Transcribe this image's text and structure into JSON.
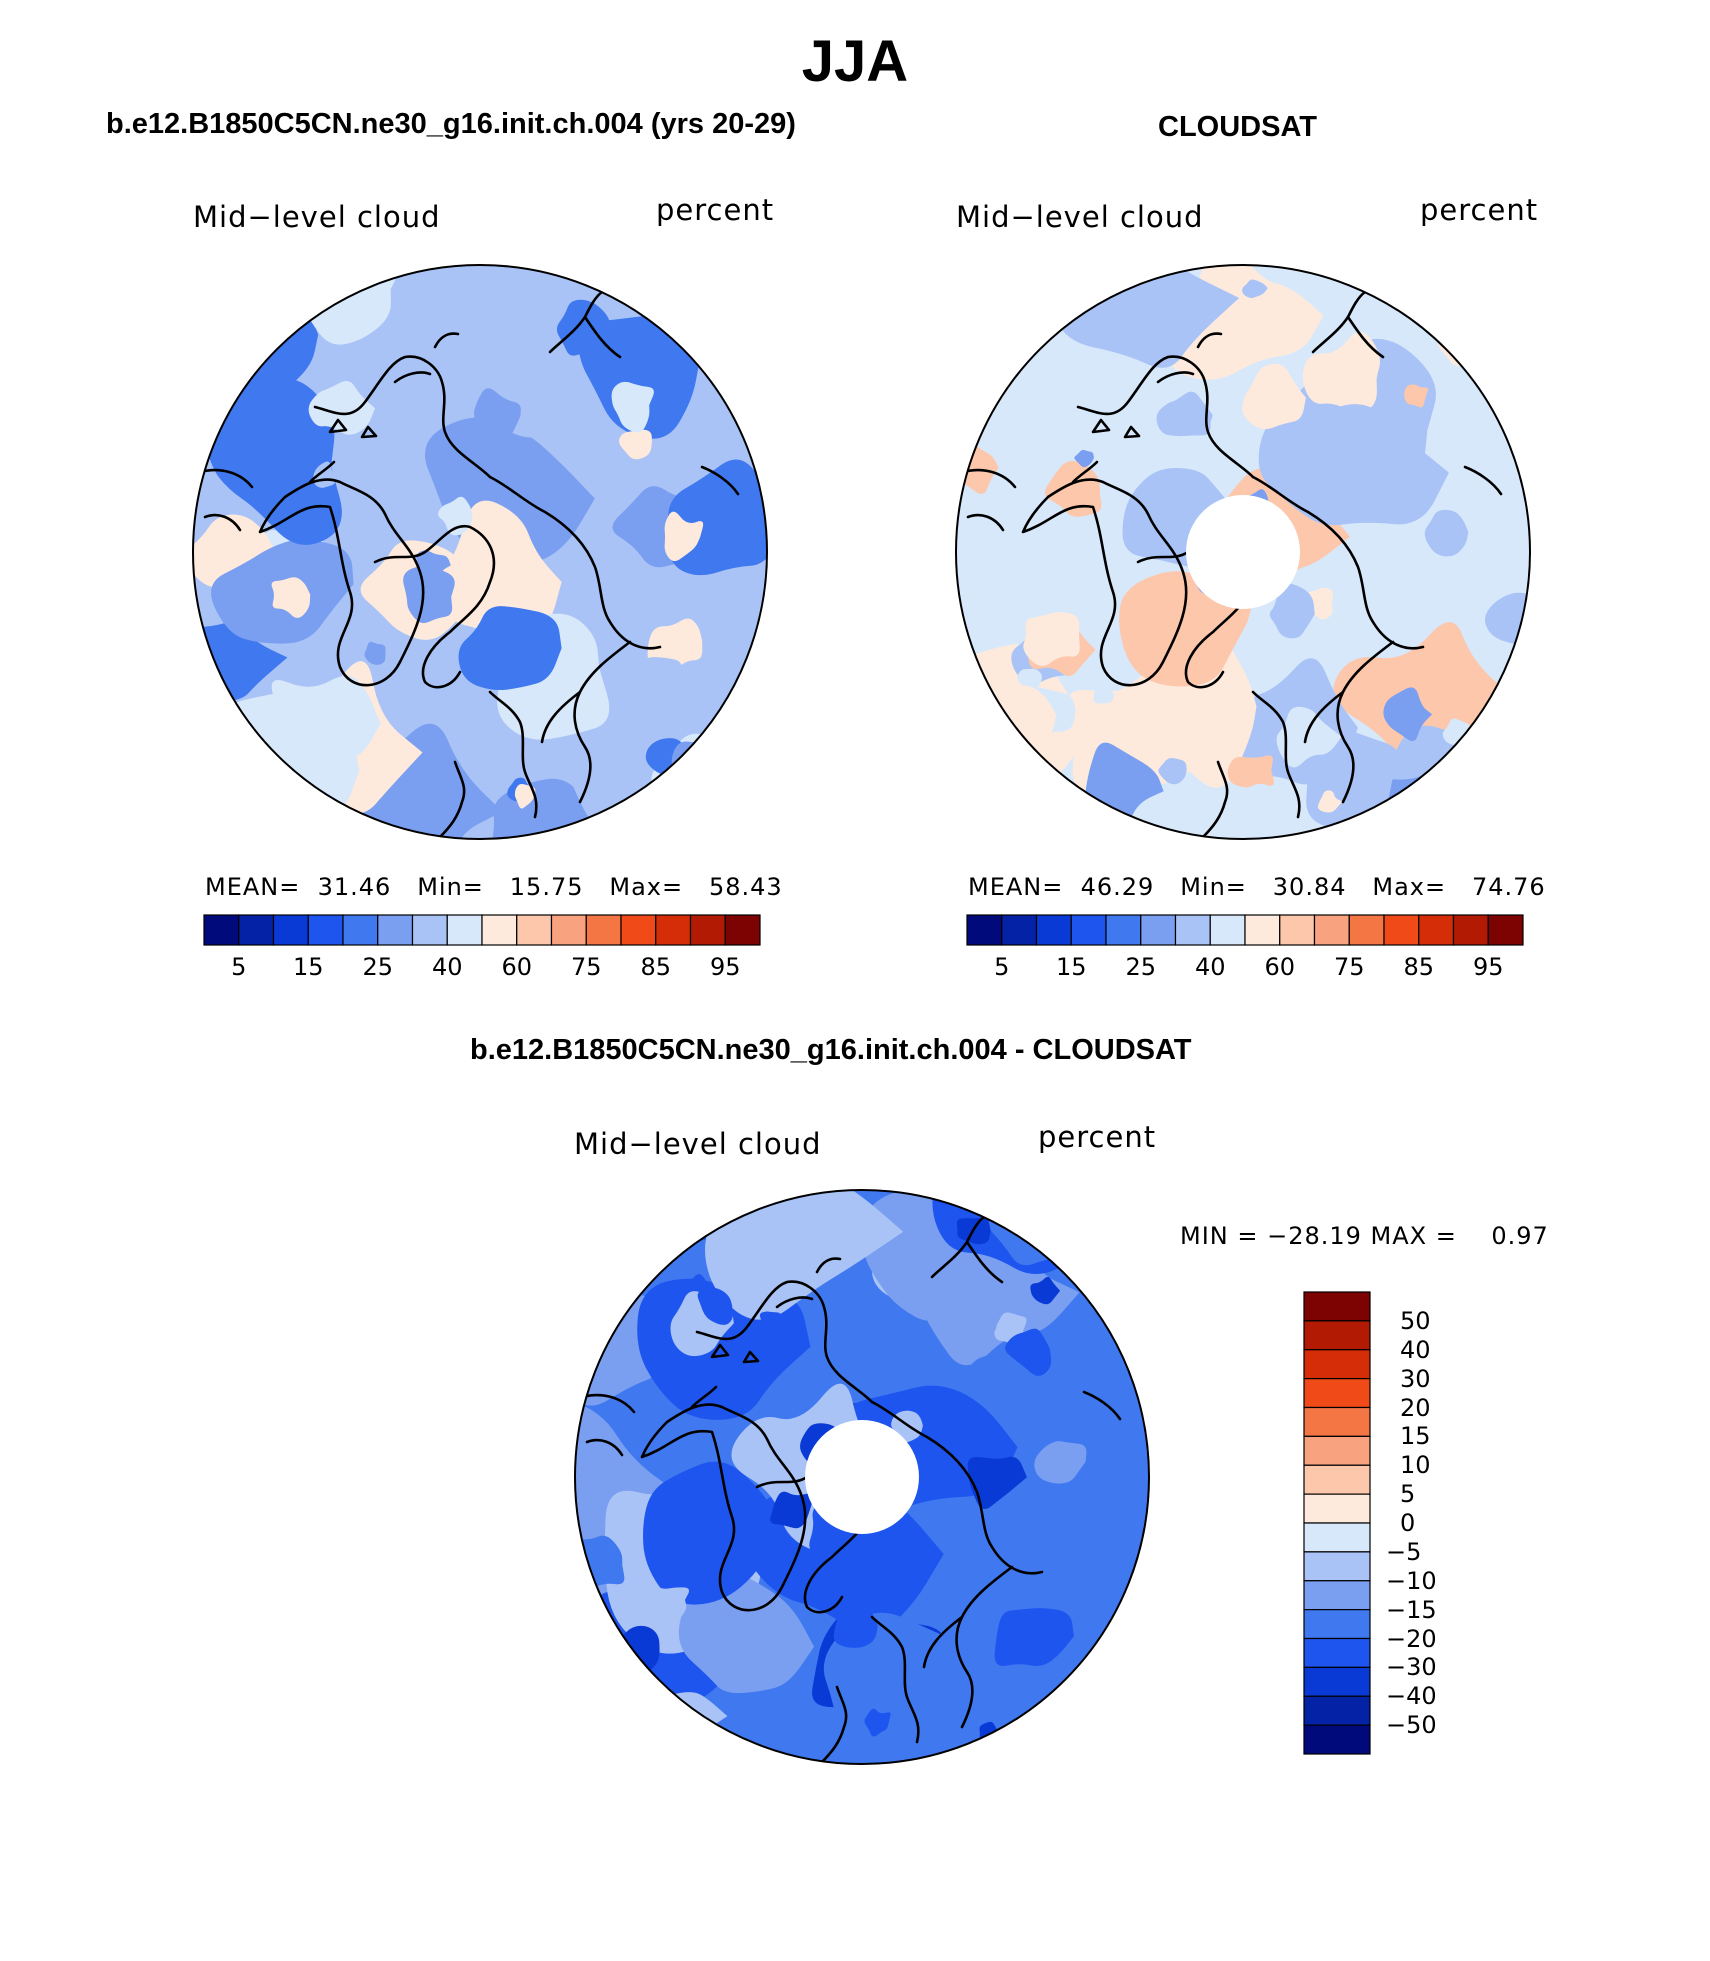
{
  "title": "JJA",
  "panels": [
    {
      "id": "model",
      "header": "b.e12.B1850C5CN.ne30_g16.init.ch.004 (yrs 20-29)",
      "variable": "Mid−level cloud",
      "units": "percent",
      "stats": "MEAN=  31.46   Min=   15.75   Max=   58.43",
      "base_level": 6,
      "polar_hole": false
    },
    {
      "id": "obs",
      "header": "CLOUDSAT",
      "variable": "Mid−level cloud",
      "units": "percent",
      "stats": "MEAN=  46.29   Min=   30.84   Max=   74.76",
      "base_level": 7,
      "polar_hole": true
    },
    {
      "id": "diff",
      "header": "b.e12.B1850C5CN.ne30_g16.init.ch.004 - CLOUDSAT",
      "variable": "Mid−level cloud",
      "units": "percent",
      "stats": "MIN = −28.19 MAX =    0.97",
      "base_level": 4,
      "polar_hole": true
    }
  ],
  "colorbar_abs": {
    "colors": [
      "#000a7a",
      "#0322a6",
      "#0a3ad6",
      "#1e55ef",
      "#3f78ef",
      "#7a9ff0",
      "#a9c3f6",
      "#d7e8fb",
      "#feeadd",
      "#fcc7ab",
      "#f9a27f",
      "#f57645",
      "#ef4a18",
      "#d52d07",
      "#b21a04",
      "#7d0303"
    ],
    "tick_labels": [
      "5",
      "15",
      "25",
      "40",
      "60",
      "75",
      "85",
      "95"
    ]
  },
  "colorbar_diff": {
    "colors": [
      "#7d0303",
      "#b21a04",
      "#d52d07",
      "#ef4a18",
      "#f57645",
      "#f9a27f",
      "#fcc7ab",
      "#feeadd",
      "#d7e8fb",
      "#a9c3f6",
      "#7a9ff0",
      "#3f78ef",
      "#1e55ef",
      "#0a3ad6",
      "#0322a6",
      "#000a7a"
    ],
    "tick_labels": [
      "50",
      "40",
      "30",
      "20",
      "15",
      "10",
      "5",
      "0",
      "−5",
      "−10",
      "−15",
      "−20",
      "−30",
      "−40",
      "−50"
    ]
  }
}
